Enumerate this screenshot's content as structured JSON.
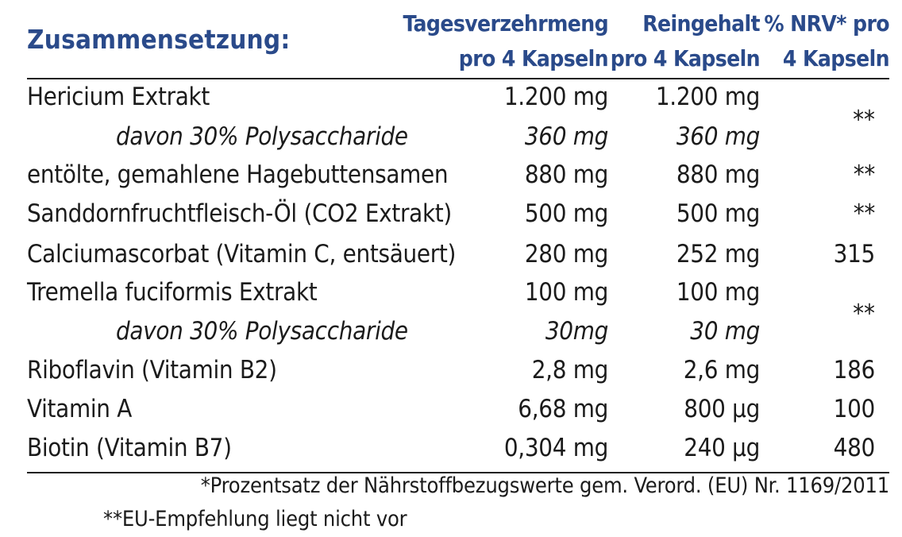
{
  "heading": "Zusammensetzung:",
  "columns": {
    "daily_line1": "Tagesverzehrmeng",
    "daily_line2": "pro 4 Kapseln",
    "pure_line1": "Reingehalt",
    "pure_line2": "pro 4 Kapseln",
    "nrv_line1": "% NRV* pro",
    "nrv_line2": "4 Kapseln"
  },
  "rows": [
    {
      "name": "Hericium Extrakt",
      "daily": "1.200 mg",
      "pure": "1.200 mg",
      "nrv": ""
    },
    {
      "name": "davon 30% Polysaccharide",
      "daily": "360 mg",
      "pure": "360 mg",
      "nrv": ""
    },
    {
      "name": "entölte, gemahlene Hagebuttensamen",
      "daily": "880 mg",
      "pure": "880 mg",
      "nrv": "**"
    },
    {
      "name": "Sanddornfruchtfleisch-Öl (CO2 Extrakt)",
      "daily": "500 mg",
      "pure": "500 mg",
      "nrv": "**"
    },
    {
      "name": "Calciumascorbat (Vitamin C, entsäuert)",
      "daily": "280 mg",
      "pure": "252 mg",
      "nrv": "315"
    },
    {
      "name": "Tremella fuciformis Extrakt",
      "daily": "100 mg",
      "pure": "100 mg",
      "nrv": ""
    },
    {
      "name": "davon 30% Polysaccharide",
      "daily": "30mg",
      "pure": "30 mg",
      "nrv": ""
    },
    {
      "name": "Riboflavin (Vitamin B2)",
      "daily": "2,8 mg",
      "pure": "2,6 mg",
      "nrv": "186"
    },
    {
      "name": "Vitamin A",
      "daily": "6,68 mg",
      "pure": "800 µg",
      "nrv": "100"
    },
    {
      "name": "Biotin (Vitamin B7)",
      "daily": "0,304 mg",
      "pure": "240 µg",
      "nrv": "480"
    }
  ],
  "merged_nrv": {
    "hericium": "**",
    "tremella": "**"
  },
  "footnotes": {
    "one": "*Prozentsatz der Nährstoffbezugswerte gem. Verord. (EU) Nr. 1169/2011",
    "two": "**EU-Empfehlung liegt nicht vor"
  },
  "colors": {
    "heading": "#2a4a8a",
    "text": "#1b1b1b"
  }
}
